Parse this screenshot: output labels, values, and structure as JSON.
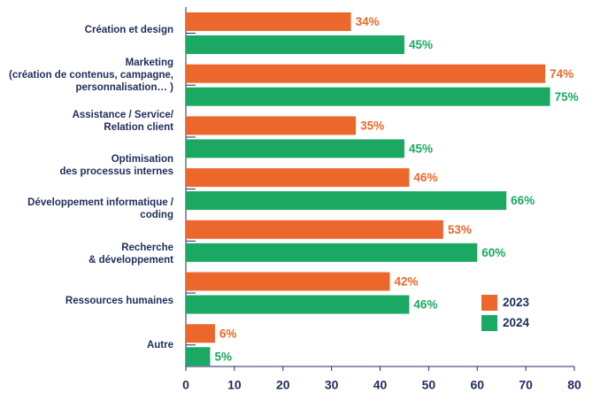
{
  "chart_data": {
    "type": "bar",
    "orientation": "horizontal",
    "categories": [
      [
        "Création et design"
      ],
      [
        "Marketing",
        "(création de contenus, campagne,",
        "personnalisation… )"
      ],
      [
        "Assistance / Service/",
        "Relation client"
      ],
      [
        "Optimisation",
        "des processus internes"
      ],
      [
        "Développement informatique /",
        "coding"
      ],
      [
        "Recherche",
        "& développement"
      ],
      [
        "Ressources humaines"
      ],
      [
        "Autre"
      ]
    ],
    "series": [
      {
        "name": "2023",
        "color": "#ec672c",
        "values": [
          34,
          74,
          35,
          null,
          46,
          53,
          42,
          6
        ],
        "value_labels": [
          "34%",
          "74%",
          "35%",
          null,
          "46%",
          "53%",
          "42%",
          "6%"
        ]
      },
      {
        "name": "2024",
        "color": "#1aa862",
        "values": [
          45,
          75,
          45,
          null,
          66,
          60,
          46,
          5
        ],
        "value_labels": [
          "45%",
          "75%",
          "45%",
          null,
          "66%",
          "60%",
          "46%",
          "5%"
        ]
      }
    ],
    "xlim": [
      0,
      80
    ],
    "xticks": [
      0,
      10,
      20,
      30,
      40,
      50,
      60,
      70,
      80
    ],
    "legend": "lower right"
  }
}
